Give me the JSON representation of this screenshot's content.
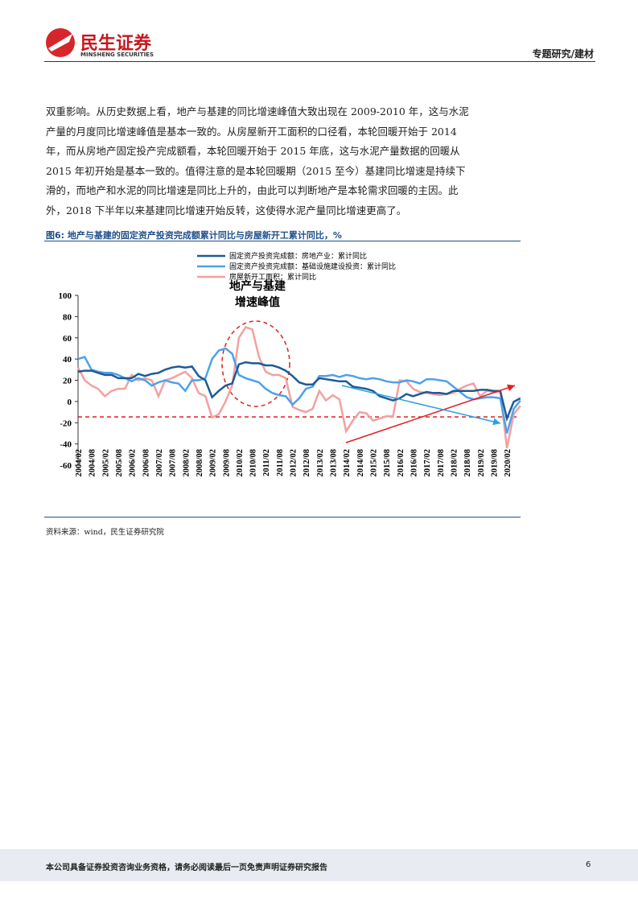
{
  "header": {
    "brand": "民生证券",
    "brand_en": "MINSHENG SECURITIES",
    "section": "专题研究/建材"
  },
  "body": {
    "lines": [
      "双重影响。从历史数据上看，地产与基建的同比增速峰值大致出现在 2009-2010 年，这与水泥",
      "产量的月度同比增速峰值是基本一致的。从房屋新开工面积的口径看，本轮回暖开始于 2014",
      "年，而从房地产固定投产完成额看，本轮回暖开始于 2015 年底，这与水泥产量数据的回暖从",
      "2015 年初开始是基本一致的。值得注意的是本轮回暖期（2015 至今）基建同比增速是持续下",
      "滑的，而地产和水泥的同比增速是同比上升的，由此可以判断地产是本轮需求回暖的主因。此",
      "外，2018 下半年以来基建同比增速开始反转，这使得水泥产量同比增速更高了。"
    ]
  },
  "figure": {
    "title": "图6: 地产与基建的固定资产投资完成额累计同比与房屋新开工累计同比，%",
    "source": "资料来源：wind，民生证券研究院"
  },
  "chart_data": {
    "type": "line",
    "annotations": [
      "地产与基建",
      "增速峰值"
    ],
    "categories": [
      "2004/02",
      null,
      "2004/08",
      null,
      "2005/02",
      null,
      "2005/08",
      null,
      "2006/02",
      null,
      "2006/08",
      null,
      "2007/02",
      null,
      "2007/08",
      null,
      "2008/02",
      null,
      "2008/08",
      null,
      "2009/02",
      null,
      "2009/08",
      null,
      "2010/02",
      null,
      "2010/08",
      null,
      "2011/02",
      null,
      "2011/08",
      null,
      "2012/02",
      null,
      "2012/08",
      null,
      "2013/02",
      null,
      "2013/08",
      null,
      "2014/02",
      null,
      "2014/08",
      null,
      "2015/02",
      null,
      "2015/08",
      null,
      "2016/02",
      null,
      "2016/08",
      null,
      "2017/02",
      null,
      "2017/08",
      null,
      "2018/02",
      null,
      "2018/08",
      null,
      "2019/02",
      null,
      "2019/08",
      null,
      "2020/02",
      null,
      null
    ],
    "ylim": [
      -60,
      100
    ],
    "yticks": [
      100,
      80,
      60,
      40,
      20,
      0,
      -20,
      -40,
      -60
    ],
    "series": [
      {
        "name": "固定资产投资完成额：房地产业：累计同比",
        "color": "#1f5a96",
        "values": [
          28,
          29,
          29,
          27,
          25,
          25,
          22,
          22,
          22,
          26,
          24,
          26,
          27,
          30,
          32,
          33,
          32,
          33,
          24,
          20,
          4,
          10,
          15,
          17,
          35,
          37,
          36,
          36,
          34,
          34,
          32,
          29,
          24,
          18,
          16,
          16,
          22,
          21,
          20,
          19,
          19,
          14,
          13,
          12,
          10,
          5,
          3,
          1,
          3,
          7,
          5,
          7,
          9,
          8,
          8,
          7,
          10,
          10,
          10,
          10,
          11,
          11,
          10,
          10,
          -16,
          -0.3,
          3
        ]
      },
      {
        "name": "固定资产投资完成额：基础设施建设投资：累计同比",
        "color": "#4ea2e8",
        "values": [
          40,
          42,
          30,
          28,
          27,
          27,
          25,
          22,
          19,
          22,
          20,
          15,
          18,
          20,
          18,
          17,
          10,
          20,
          20,
          22,
          40,
          48,
          50,
          45,
          25,
          22,
          20,
          18,
          12,
          8,
          6,
          5,
          -3,
          3,
          12,
          14,
          24,
          24,
          25,
          23,
          25,
          24,
          22,
          21,
          22,
          21,
          19,
          18,
          18,
          20,
          19,
          17,
          21,
          21,
          20,
          19,
          14,
          9,
          4,
          2,
          3,
          4,
          4,
          3,
          -30,
          -7,
          1
        ]
      },
      {
        "name": "房屋新开工面积：累计同比",
        "color": "#f4a0a0",
        "values": [
          32,
          20,
          15,
          12,
          5,
          10,
          12,
          12,
          25,
          20,
          22,
          20,
          5,
          20,
          22,
          25,
          28,
          22,
          8,
          5,
          -15,
          -12,
          0,
          15,
          60,
          70,
          68,
          42,
          28,
          25,
          25,
          22,
          -5,
          -8,
          -10,
          -7,
          10,
          1,
          6,
          2,
          -28,
          -18,
          -10,
          -11,
          -18,
          -16,
          -14,
          -14,
          20,
          19,
          12,
          9,
          8,
          7,
          6,
          7,
          8,
          12,
          15,
          17,
          5,
          10,
          9,
          9,
          -44,
          -12,
          -4
        ]
      }
    ]
  },
  "footer": {
    "disclaimer": "本公司具备证券投资咨询业务资格，请务必阅读最后一页免责声明证券研究报告",
    "page": "6"
  }
}
